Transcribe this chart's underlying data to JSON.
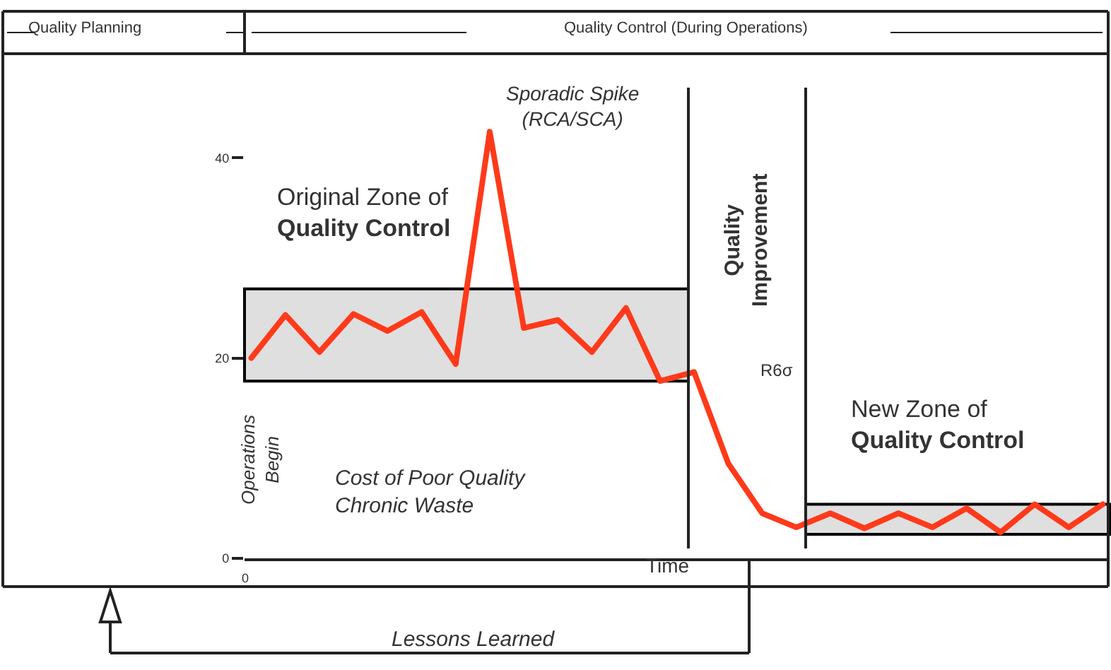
{
  "chart_data": {
    "type": "line",
    "xlabel": "Time",
    "categories": [
      null,
      null,
      null,
      null,
      null,
      null,
      null,
      null,
      null,
      null,
      null,
      null,
      null,
      null,
      null,
      null,
      null,
      null,
      null,
      null,
      null,
      null,
      null,
      null,
      null,
      null
    ],
    "series": [
      {
        "color": "#ff3a1a",
        "values": [
          20,
          24.3,
          20.6,
          24.4,
          22.7,
          24.6,
          19.4,
          42.6,
          23,
          23.8,
          20.6,
          25,
          17.7,
          18.6,
          9.5,
          4.5,
          3.1,
          4.5,
          3,
          4.5,
          3.1,
          5,
          2.6,
          5.4,
          3.1,
          5.4
        ]
      }
    ],
    "ylim": [
      0,
      47
    ],
    "yticks": [
      0,
      20,
      40
    ],
    "bands": [
      {
        "axis": "y",
        "from": 17.7,
        "to": 26.9,
        "label": "Original Zone of\nQuality Control",
        "color": "#000000"
      },
      {
        "axis": "y",
        "from": 2.4,
        "to": 5.4,
        "label": "New Zone of\nQuality Control",
        "color": "#000000"
      }
    ],
    "annotations": [
      "Quality Planning",
      "Quality Control (During Operations)",
      "Sporadic Spike\n(RCA/SCA)",
      "Quality\nImprovement",
      "R6σ",
      "Operations\nBegin",
      "Cost of Poor Quality\nChronic Waste",
      "Lessons Learned",
      "0"
    ],
    "grid": false,
    "legend": false,
    "marker": "none",
    "line_style": "solid"
  }
}
